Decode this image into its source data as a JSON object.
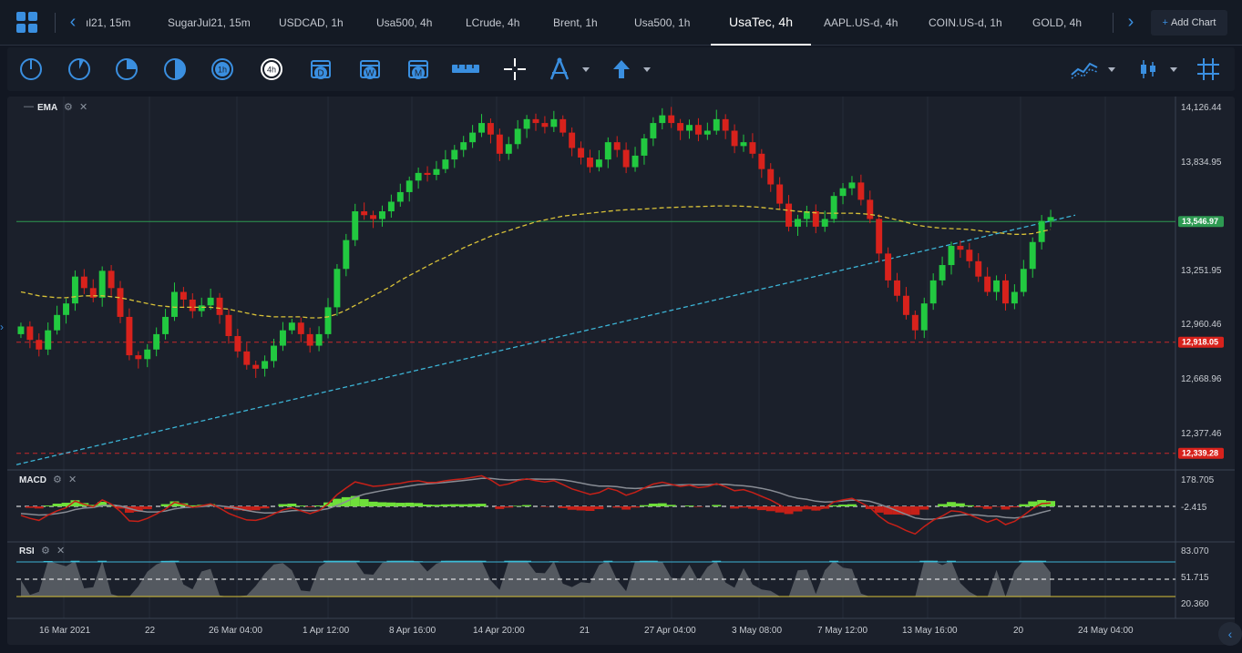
{
  "tabs": [
    {
      "label": "ıl21, 15m"
    },
    {
      "label": "SugarJul21, 15m"
    },
    {
      "label": "USDCAD, 1h"
    },
    {
      "label": "Usa500, 4h"
    },
    {
      "label": "LCrude, 4h"
    },
    {
      "label": "Brent, 1h"
    },
    {
      "label": "Usa500, 1h"
    },
    {
      "label": "UsaTec, 4h"
    },
    {
      "label": "AAPL.US-d, 4h"
    },
    {
      "label": "COIN.US-d, 1h"
    },
    {
      "label": "GOLD, 4h"
    }
  ],
  "active_tab": "UsaTec, 4h",
  "add_chart_label": "Add Chart",
  "toolbar": {
    "timeframe_icons": [
      "clock-1m-icon",
      "clock-5m-icon",
      "clock-15m-icon",
      "clock-30m-icon",
      "clock-1h-icon",
      "clock-4h-icon",
      "calendar-day-icon",
      "calendar-week-icon",
      "calendar-month-icon"
    ],
    "timeframe_badges": [
      "",
      "",
      "",
      "",
      "1h",
      "4h",
      "D",
      "W",
      "M"
    ],
    "right_icons": [
      "line-chart-icon",
      "candlestick-icon",
      "grid-icon"
    ]
  },
  "indicators": {
    "main": "EMA",
    "macd": "MACD",
    "rsi": "RSI"
  },
  "price_axis": [
    "14,126.44",
    "13,834.95",
    "13,251.95",
    "12,960.46",
    "12,668.96",
    "12,377.46"
  ],
  "price_tags": {
    "current": "13,546.97",
    "support_1": "12,918.05",
    "support_2": "12,339.28"
  },
  "macd_axis": [
    "178.705",
    "-2.415"
  ],
  "rsi_axis": [
    "83.070",
    "51.715",
    "20.360"
  ],
  "time_axis": [
    "16 Mar 2021",
    "22",
    "26 Mar 04:00",
    "1 Apr 12:00",
    "8 Apr 16:00",
    "14 Apr 20:00",
    "21",
    "27 Apr 04:00",
    "3 May 08:00",
    "7 May 12:00",
    "13 May 16:00",
    "20",
    "24 May 04:00"
  ],
  "colors": {
    "up": "#22c940",
    "down": "#d8221c",
    "ema": "#d9c238",
    "trendline": "#3cb4d6",
    "hline_green": "#2e9a52",
    "hline_red": "#c8282a",
    "accent": "#3a8fe0"
  },
  "chart_data": {
    "type": "candlestick",
    "symbol": "UsaTec, 4h",
    "ylim": [
      12300,
      14160
    ],
    "horizontal_lines": [
      13546.97,
      12918.05,
      12339.28
    ],
    "trendline": {
      "start": 12280,
      "end": 13580
    },
    "close_series": [
      13000,
      12930,
      12880,
      12980,
      13060,
      13120,
      13260,
      13200,
      13150,
      13290,
      13200,
      13050,
      12850,
      12830,
      12880,
      12960,
      13050,
      13180,
      13140,
      13080,
      13110,
      13150,
      13060,
      12950,
      12870,
      12800,
      12780,
      12820,
      12900,
      12980,
      13020,
      12960,
      12900,
      12960,
      13100,
      13300,
      13450,
      13600,
      13580,
      13560,
      13600,
      13650,
      13700,
      13760,
      13800,
      13790,
      13820,
      13870,
      13920,
      13960,
      14010,
      14060,
      14000,
      13900,
      13950,
      14030,
      14080,
      14060,
      14040,
      14080,
      14010,
      13930,
      13880,
      13830,
      13870,
      13960,
      13920,
      13830,
      13890,
      13980,
      14060,
      14100,
      14060,
      14020,
      14050,
      14000,
      14020,
      14080,
      14020,
      13940,
      13960,
      13900,
      13820,
      13740,
      13640,
      13520,
      13560,
      13600,
      13520,
      13560,
      13680,
      13720,
      13750,
      13660,
      13560,
      13380,
      13240,
      13160,
      13060,
      12980,
      13120,
      13240,
      13320,
      13420,
      13400,
      13340,
      13260,
      13180,
      13240,
      13120,
      13180,
      13300,
      13440,
      13550,
      13570
    ],
    "ema_series": [
      13180,
      13170,
      13160,
      13155,
      13150,
      13150,
      13155,
      13160,
      13160,
      13160,
      13155,
      13150,
      13140,
      13130,
      13120,
      13110,
      13105,
      13100,
      13100,
      13100,
      13100,
      13100,
      13095,
      13090,
      13080,
      13070,
      13060,
      13055,
      13050,
      13050,
      13050,
      13050,
      13045,
      13045,
      13050,
      13065,
      13085,
      13110,
      13135,
      13160,
      13185,
      13210,
      13240,
      13265,
      13290,
      13315,
      13340,
      13360,
      13385,
      13410,
      13430,
      13450,
      13470,
      13485,
      13500,
      13515,
      13530,
      13545,
      13555,
      13565,
      13575,
      13580,
      13585,
      13590,
      13595,
      13600,
      13605,
      13608,
      13610,
      13612,
      13615,
      13618,
      13620,
      13622,
      13624,
      13625,
      13626,
      13628,
      13628,
      13628,
      13626,
      13624,
      13620,
      13615,
      13610,
      13605,
      13600,
      13596,
      13592,
      13590,
      13590,
      13590,
      13590,
      13588,
      13584,
      13576,
      13566,
      13555,
      13543,
      13530,
      13522,
      13516,
      13512,
      13510,
      13508,
      13505,
      13500,
      13494,
      13490,
      13484,
      13480,
      13480,
      13484,
      13495,
      13505
    ]
  }
}
